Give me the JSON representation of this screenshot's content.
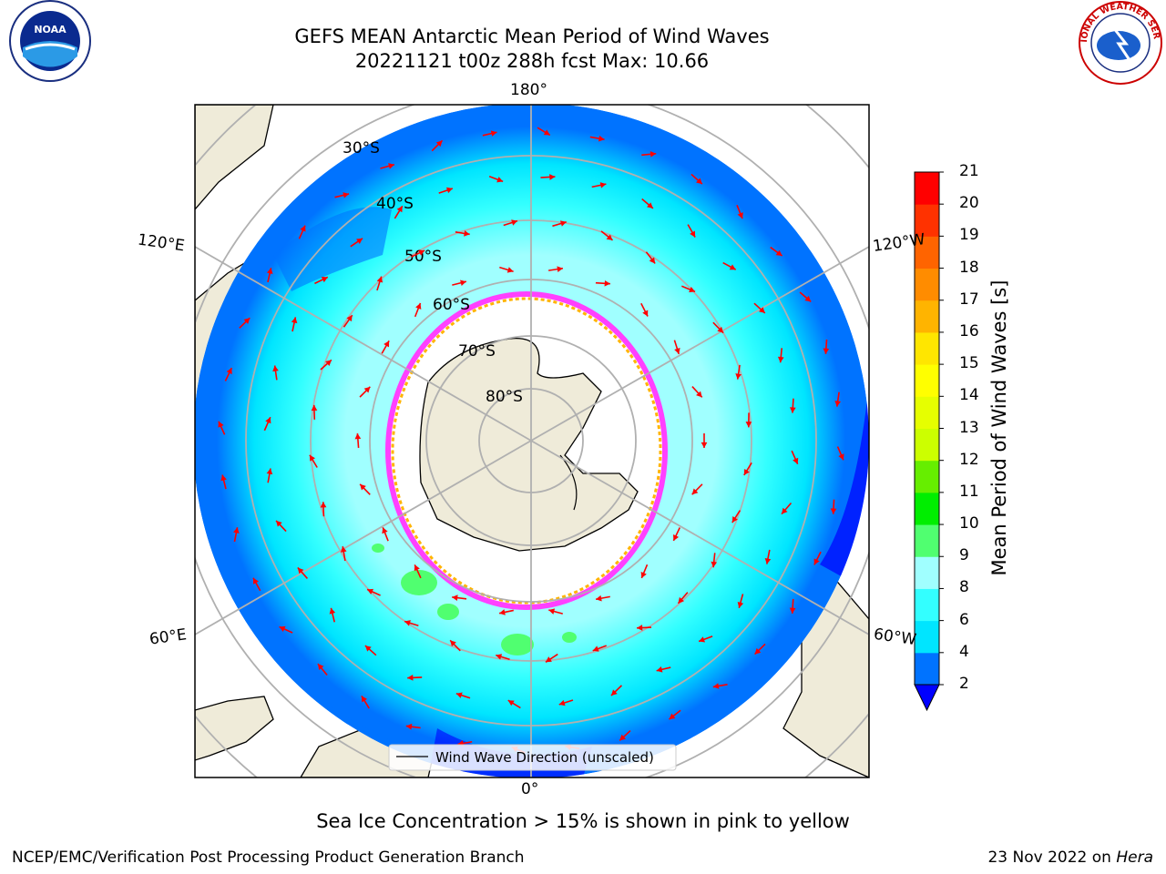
{
  "header": {
    "title_line1": "GEFS MEAN Antarctic Mean Period of Wind Waves",
    "title_line2": "20221121 t00z 288h fcst   Max: 10.66"
  },
  "map": {
    "projection": "south-polar-stereographic",
    "longitude_labels": {
      "top": "180°",
      "bottom": "0°",
      "left_upper": "120°E",
      "left_lower": "60°E",
      "right_upper": "120°W",
      "right_lower": "60°W"
    },
    "latitude_labels": [
      "30°S",
      "40°S",
      "50°S",
      "60°S",
      "70°S",
      "80°S"
    ],
    "land_color": "#efebd9",
    "sea_ice_color": "#ffffff",
    "arrow_color": "#ff0000"
  },
  "legend": {
    "label": "Wind Wave Direction (unscaled)"
  },
  "colorbar": {
    "title": "Mean Period of Wind Waves [s]",
    "ticks": [
      "2",
      "4",
      "6",
      "8",
      "9",
      "10",
      "11",
      "12",
      "13",
      "14",
      "15",
      "16",
      "17",
      "18",
      "19",
      "20",
      "21"
    ],
    "colors": [
      "#0073ff",
      "#00e5ff",
      "#33ffff",
      "#a0ffff",
      "#50ff70",
      "#00ee00",
      "#66ee00",
      "#ccff00",
      "#e6ff00",
      "#ffff00",
      "#ffe600",
      "#ffb400",
      "#ff8c00",
      "#ff6400",
      "#ff3200",
      "#ff0000"
    ],
    "underflow_color": "#0000ff"
  },
  "note": "Sea Ice Concentration > 15% is shown in pink to yellow",
  "footer": {
    "left": "NCEP/EMC/Verification Post Processing Product Generation Branch",
    "right_date": "23 Nov 2022 on ",
    "right_host": "Hera"
  },
  "logos": {
    "left": "NOAA",
    "right_text": "NATIONAL WEATHER SERVICE"
  }
}
